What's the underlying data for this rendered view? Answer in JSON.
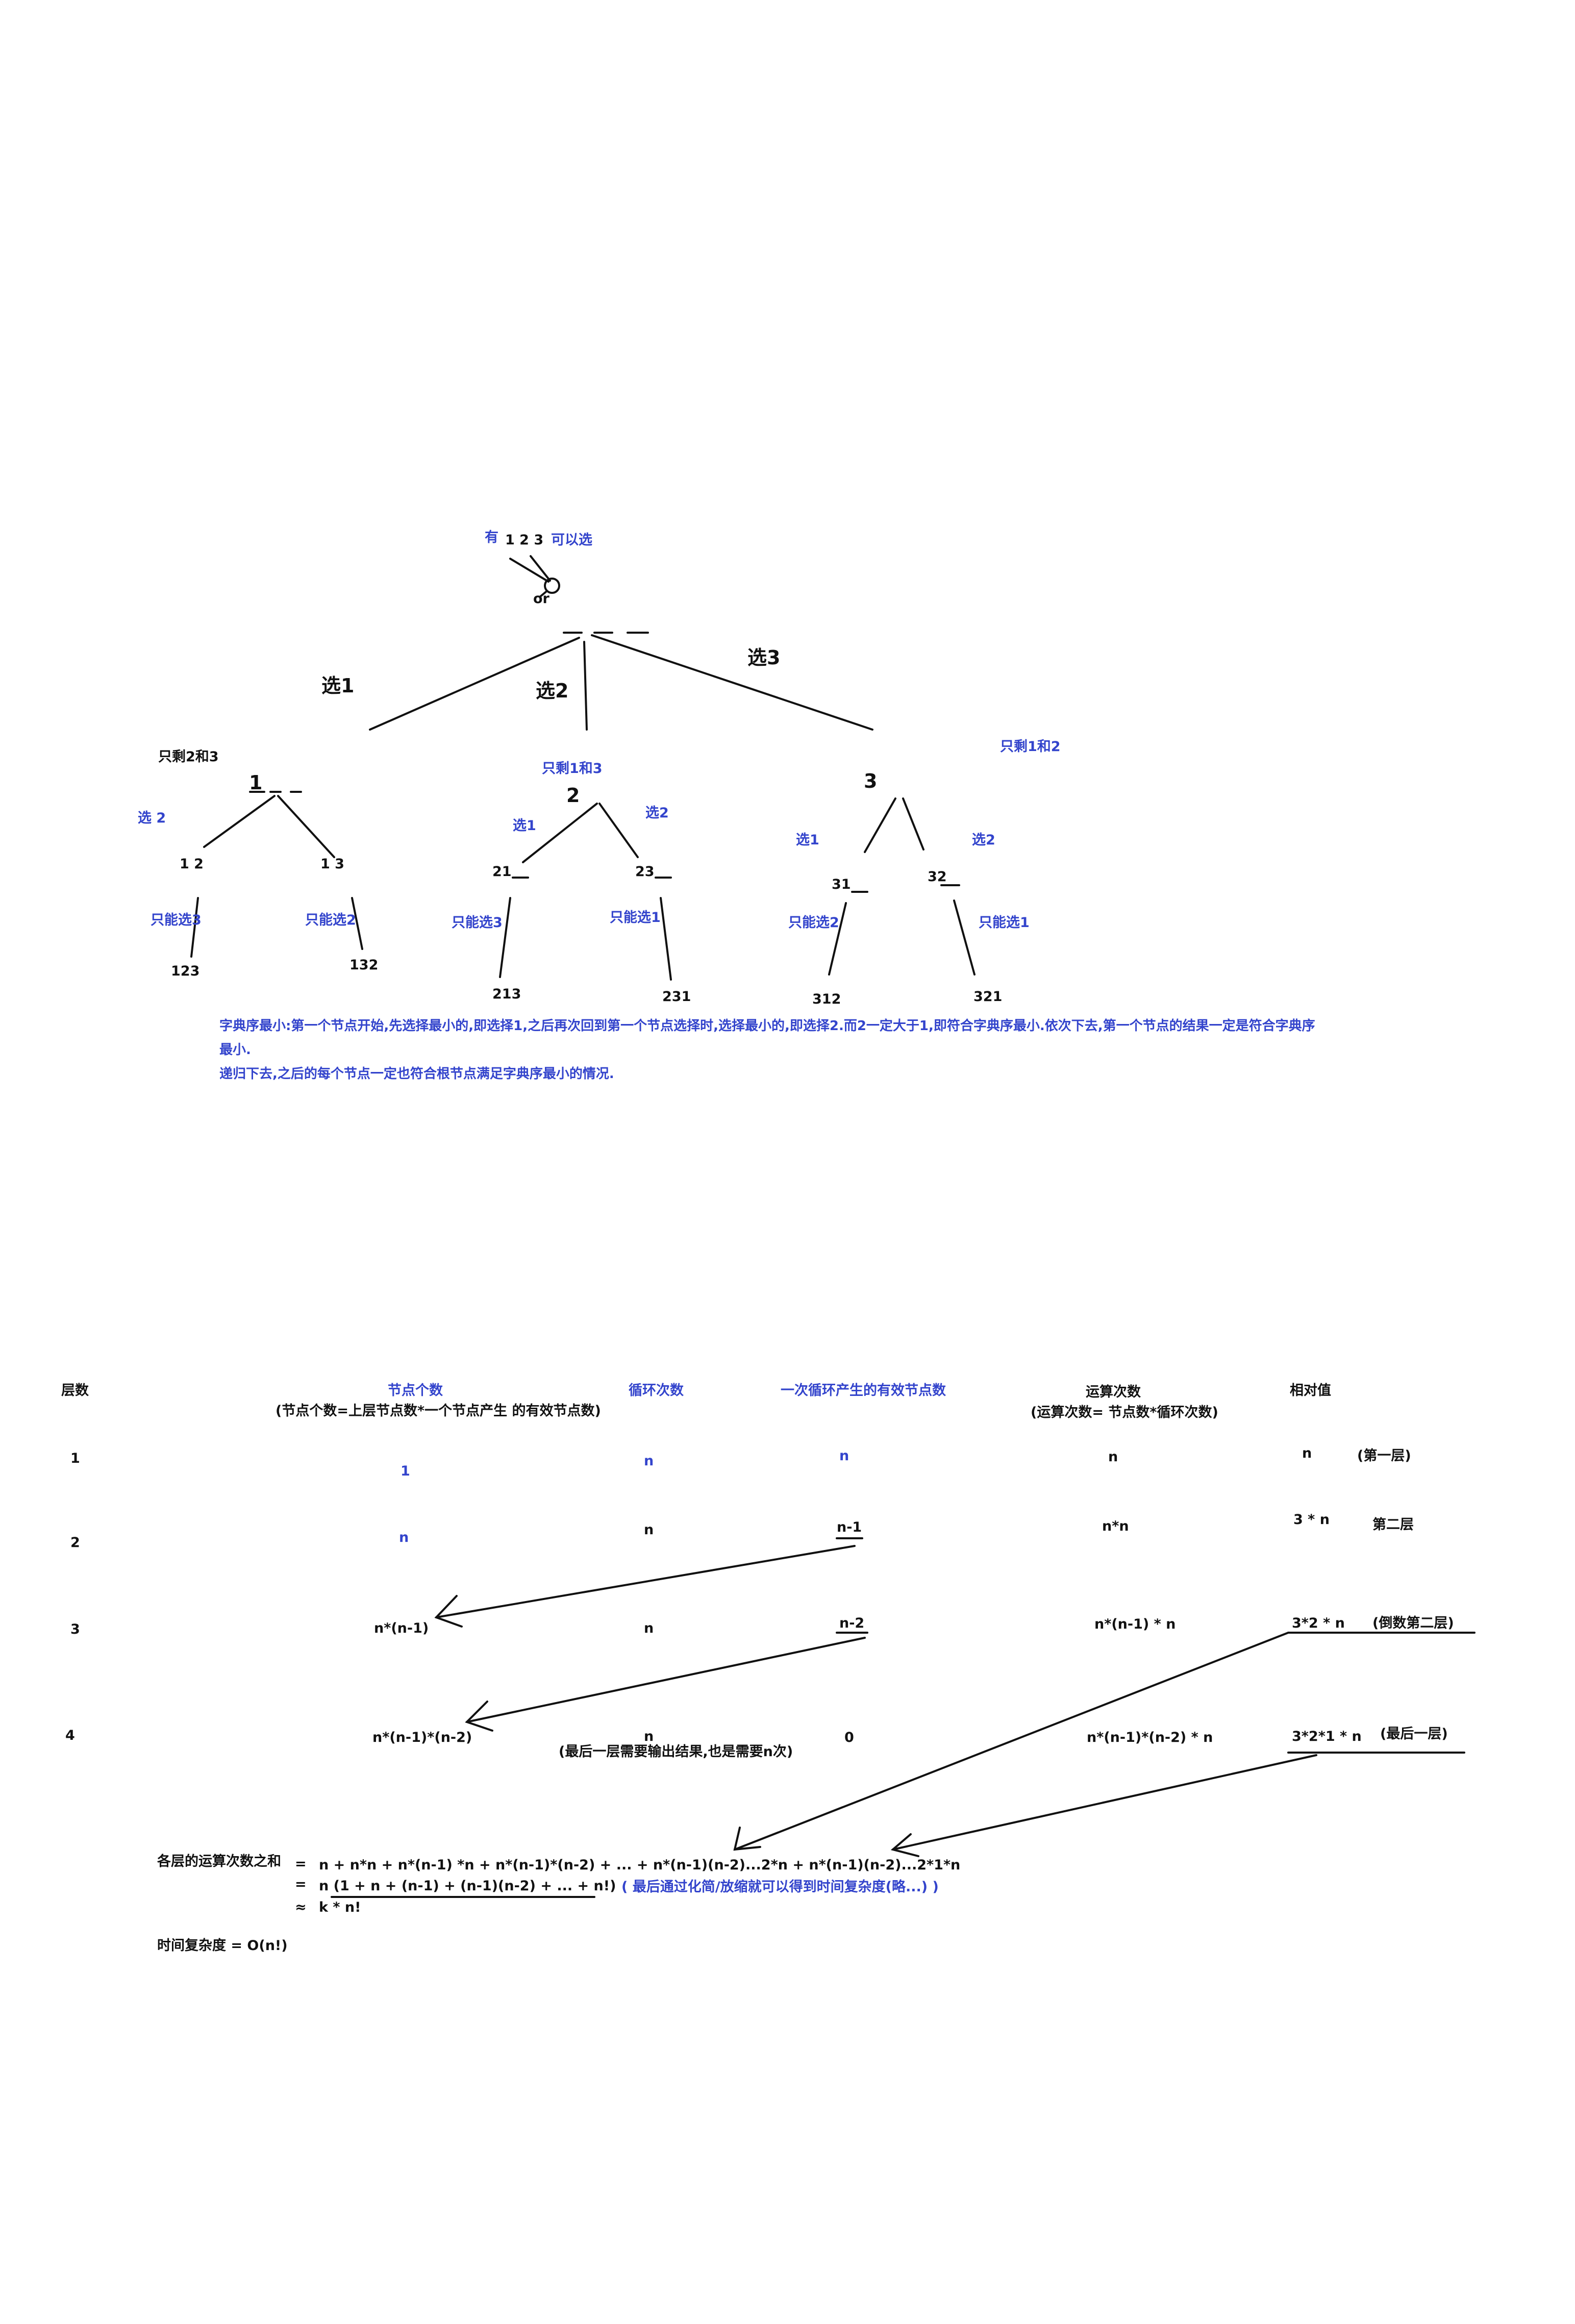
{
  "tree": {
    "root_note_you": "有",
    "root_note_nums": "1 2 3",
    "root_note_can": "可以选",
    "root_or": "or",
    "branch1": "选1",
    "branch2": "选2",
    "branch3": "选3",
    "left": {
      "remaining": "只剩2和3",
      "node": "1",
      "choose": "选 2",
      "child1": "1 2",
      "child2": "1 3",
      "only1": "只能选3",
      "only2": "只能选2",
      "leaf1": "123",
      "leaf2": "132"
    },
    "mid": {
      "remaining": "只剩1和3",
      "node": "2",
      "choose_left": "选1",
      "choose_right": "选2",
      "child1": "21",
      "child2": "23",
      "only1": "只能选3",
      "only2": "只能选1",
      "leaf1": "213",
      "leaf2": "231"
    },
    "right": {
      "remaining": "只剩1和2",
      "node": "3",
      "choose_left": "选1",
      "choose_right": "选2",
      "child1": "31",
      "child2": "32",
      "only1": "只能选2",
      "only2": "只能选1",
      "leaf1": "312",
      "leaf2": "321"
    },
    "explanation_line1": "字典序最小:第一个节点开始,先选择最小的,即选择1,之后再次回到第一个节点选择时,选择最小的,即选择2.而2一定大于1,即符合字典序最小.依次下去,第一个节点的结果一定是符合字典序",
    "explanation_line2": "最小.",
    "explanation_line3": "递归下去,之后的每个节点一定也符合根节点满足字典序最小的情况."
  },
  "table": {
    "headers": {
      "level": "层数",
      "node_count": "节点个数",
      "node_count_note": "(节点个数=上层节点数*一个节点产生 的有效节点数)",
      "loops": "循环次数",
      "valid_nodes": "一次循环产生的有效节点数",
      "ops": "运算次数",
      "ops_note": "(运算次数= 节点数*循环次数)",
      "relative": "相对值"
    },
    "rows": [
      {
        "level": "1",
        "node_count": "1",
        "loops": "n",
        "valid_nodes": "n",
        "ops": "n",
        "relative": "n",
        "relative_note": "(第一层)"
      },
      {
        "level": "2",
        "node_count": "n",
        "loops": "n",
        "valid_nodes": "n-1",
        "ops": "n*n",
        "relative": "3 * n",
        "relative_note": "第二层"
      },
      {
        "level": "3",
        "node_count": "n*(n-1)",
        "loops": "n",
        "valid_nodes": "n-2",
        "ops": "n*(n-1) * n",
        "relative": "3*2 * n",
        "relative_note": "(倒数第二层)"
      },
      {
        "level": "4",
        "node_count": "n*(n-1)*(n-2)",
        "loops": "n",
        "loops_note": "(最后一层需要输出结果,也是需要n次)",
        "valid_nodes": "0",
        "ops": "n*(n-1)*(n-2) * n",
        "relative": "3*2*1 * n",
        "relative_note": "(最后一层)"
      }
    ]
  },
  "sum": {
    "label": "各层的运算次数之和",
    "eq1": "=",
    "line1": "n + n*n + n*(n-1) *n + n*(n-1)*(n-2) + ... + n*(n-1)(n-2)...2*n + n*(n-1)(n-2)...2*1*n",
    "eq2": "=",
    "line2": "n (1 + n + (n-1) + (n-1)(n-2) + ... + n!)",
    "note": "( 最后通过化简/放缩就可以得到时间复杂度(略...) )",
    "approx": "≈",
    "line3": "k * n!",
    "complexity": "时间复杂度 = O(n!)"
  },
  "colors": {
    "blue_text": "#3344cc",
    "black_text": "#111111"
  }
}
